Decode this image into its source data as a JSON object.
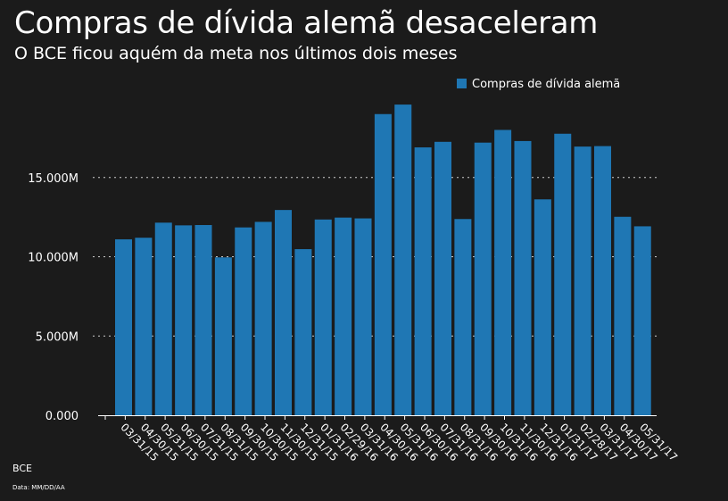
{
  "title": "Compras de dívida alemã desaceleram",
  "subtitle": "O BCE ficou aquém da meta nos últimos dois meses",
  "source": "BCE",
  "note": "Data: MM/DD/AA",
  "colors": {
    "background": "#1b1b1b",
    "bar": "#1f77b4",
    "text": "#ffffff",
    "grid": "#d0d0d0"
  },
  "chart_data": {
    "type": "bar",
    "title": "Compras de dívida alemã desaceleram",
    "subtitle": "O BCE ficou aquém da meta nos últimos dois meses",
    "xlabel": "",
    "ylabel": "",
    "legend": {
      "position": "top-right",
      "entries": [
        "Compras de dívida alemã"
      ]
    },
    "ylim": [
      0,
      20000
    ],
    "yticks": [
      0,
      5000,
      10000,
      15000
    ],
    "ytick_labels": [
      "0.000",
      "5.000M",
      "10.000M",
      "15.000M"
    ],
    "categories": [
      "03/31/15",
      "04/30/15",
      "05/31/15",
      "06/30/15",
      "07/31/15",
      "08/31/15",
      "09/30/15",
      "10/30/15",
      "11/30/15",
      "12/31/15",
      "01/31/16",
      "02/29/16",
      "03/31/16",
      "04/30/16",
      "05/31/16",
      "06/30/16",
      "07/31/16",
      "08/31/16",
      "09/30/16",
      "10/31/16",
      "11/30/16",
      "12/31/16",
      "01/31/17",
      "02/28/17",
      "03/31/17",
      "04/30/17",
      "05/31/17"
    ],
    "series": [
      {
        "name": "Compras de dívida alemã",
        "values": [
          11100,
          11200,
          12150,
          11980,
          12000,
          9960,
          11850,
          12200,
          12950,
          10480,
          12350,
          12470,
          12420,
          19000,
          19600,
          16900,
          17250,
          12380,
          17200,
          18000,
          17300,
          13620,
          17760,
          16950,
          16980,
          12520,
          11920
        ]
      }
    ]
  }
}
